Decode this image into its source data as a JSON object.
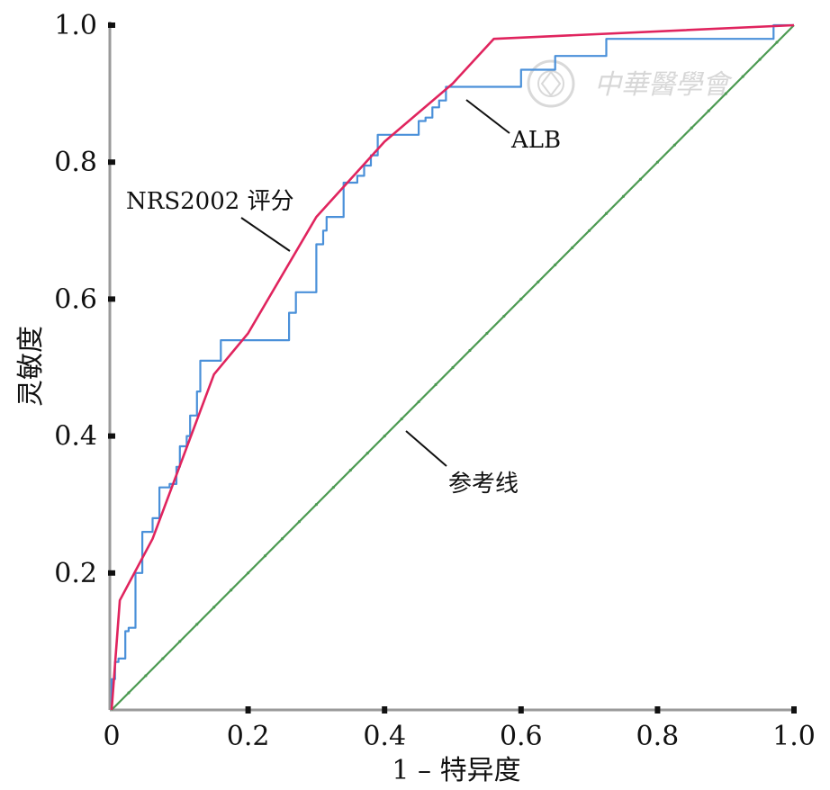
{
  "chart_data": {
    "type": "line",
    "title": "",
    "xlabel": "1 – 特异度",
    "ylabel": "灵敏度",
    "xlim": [
      0,
      1
    ],
    "ylim": [
      0,
      1
    ],
    "x_ticks": [
      0,
      0.2,
      0.4,
      0.6,
      0.8,
      1.0
    ],
    "x_tick_labels": [
      "0",
      "0.2",
      "0.4",
      "0.6",
      "0.8",
      "1.0"
    ],
    "y_ticks": [
      0.2,
      0.4,
      0.6,
      0.8,
      1.0
    ],
    "y_tick_labels": [
      "0.2",
      "0.4",
      "0.6",
      "0.8",
      "1.0"
    ],
    "grid": false,
    "legend": "none",
    "series": [
      {
        "name": "NRS2002 评分",
        "color": "#e0245e",
        "step": false,
        "points": [
          [
            0,
            0
          ],
          [
            0.012,
            0.16
          ],
          [
            0.06,
            0.25
          ],
          [
            0.15,
            0.49
          ],
          [
            0.2,
            0.55
          ],
          [
            0.3,
            0.72
          ],
          [
            0.4,
            0.83
          ],
          [
            0.5,
            0.915
          ],
          [
            0.56,
            0.98
          ],
          [
            1.0,
            1.0
          ]
        ]
      },
      {
        "name": "ALB",
        "color": "#4a90d9",
        "step": true,
        "points": [
          [
            0,
            0
          ],
          [
            0.005,
            0.045
          ],
          [
            0.01,
            0.07
          ],
          [
            0.02,
            0.075
          ],
          [
            0.025,
            0.115
          ],
          [
            0.035,
            0.12
          ],
          [
            0.045,
            0.2
          ],
          [
            0.06,
            0.26
          ],
          [
            0.065,
            0.28
          ],
          [
            0.07,
            0.28
          ],
          [
            0.085,
            0.325
          ],
          [
            0.095,
            0.33
          ],
          [
            0.1,
            0.355
          ],
          [
            0.11,
            0.385
          ],
          [
            0.115,
            0.4
          ],
          [
            0.125,
            0.43
          ],
          [
            0.13,
            0.465
          ],
          [
            0.16,
            0.51
          ],
          [
            0.17,
            0.54
          ],
          [
            0.26,
            0.54
          ],
          [
            0.27,
            0.58
          ],
          [
            0.285,
            0.61
          ],
          [
            0.3,
            0.61
          ],
          [
            0.31,
            0.68
          ],
          [
            0.315,
            0.7
          ],
          [
            0.33,
            0.72
          ],
          [
            0.34,
            0.72
          ],
          [
            0.36,
            0.77
          ],
          [
            0.37,
            0.78
          ],
          [
            0.38,
            0.795
          ],
          [
            0.39,
            0.81
          ],
          [
            0.4,
            0.84
          ],
          [
            0.43,
            0.84
          ],
          [
            0.45,
            0.84
          ],
          [
            0.46,
            0.86
          ],
          [
            0.47,
            0.865
          ],
          [
            0.48,
            0.88
          ],
          [
            0.49,
            0.89
          ],
          [
            0.5,
            0.91
          ],
          [
            0.6,
            0.91
          ],
          [
            0.6,
            0.935
          ],
          [
            0.65,
            0.935
          ],
          [
            0.725,
            0.955
          ],
          [
            0.77,
            0.98
          ],
          [
            0.97,
            0.98
          ],
          [
            0.975,
            1.0
          ],
          [
            1.0,
            1.0
          ]
        ]
      },
      {
        "name": "参考线",
        "color": "#4c9a52",
        "step": false,
        "points": [
          [
            0,
            0
          ],
          [
            1,
            1
          ]
        ]
      }
    ],
    "annotations": [
      {
        "text": "NRS2002 评分",
        "target": [
          0.26,
          0.67
        ]
      },
      {
        "text": "ALB",
        "target": [
          0.52,
          0.91
        ]
      },
      {
        "text": "参考线",
        "target": [
          0.43,
          0.41
        ]
      }
    ]
  },
  "watermark": {
    "text": "中華醫學會",
    "icon": "society-seal-icon"
  }
}
